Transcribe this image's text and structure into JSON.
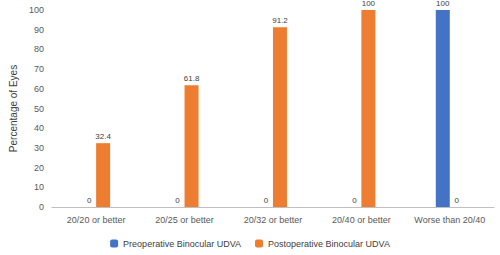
{
  "chart_data": {
    "type": "bar",
    "y_label": "Percentage of Eyes",
    "categories": [
      "20/20 or better",
      "20/25 or better",
      "20/32 or better",
      "20/40 or better",
      "Worse than 20/40"
    ],
    "series": [
      {
        "name": "Preoperative Binocular UDVA",
        "color": "#4472c4",
        "values": [
          0,
          0,
          0,
          0,
          100
        ]
      },
      {
        "name": "Postoperative Binocular UDVA",
        "color": "#ed7d31",
        "values": [
          32.4,
          61.8,
          91.2,
          100,
          0
        ]
      }
    ],
    "ylim": [
      0,
      100
    ],
    "yticks": [
      0,
      10,
      20,
      30,
      40,
      50,
      60,
      70,
      80,
      90,
      100
    ],
    "grid": false,
    "legend": "bottom",
    "data_labels": true
  }
}
